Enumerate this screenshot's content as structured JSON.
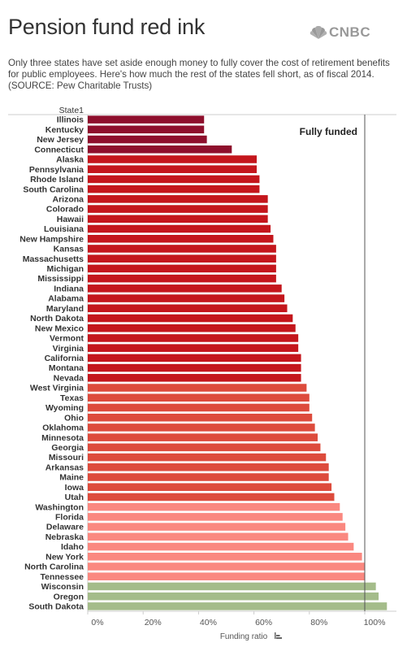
{
  "header": {
    "title": "Pension fund red ink",
    "logo_text": "CNBC",
    "logo_icon": "peacock-icon",
    "subtitle": "Only three states have set aside enough money to fully cover the cost of retirement benefits for public employees. Here's how much the rest of the states fell short, as of fiscal 2014. (SOURCE: Pew Charitable Trusts)"
  },
  "chart_data": {
    "type": "bar",
    "orientation": "horizontal",
    "category_header": "State1",
    "xlabel": "Funding ratio",
    "xlabel_icon": "sort-icon",
    "xlim": [
      0,
      1.1
    ],
    "x_ticks": [
      0,
      0.2,
      0.4,
      0.6,
      0.8,
      1.0
    ],
    "x_tick_labels": [
      "0%",
      "20%",
      "40%",
      "60%",
      "80%",
      "100%"
    ],
    "reference_line": {
      "value": 1.0,
      "label": "Fully funded"
    },
    "grid": false,
    "colors": {
      "deep": "#8e0f2c",
      "red": "#c4161c",
      "mid": "#dd4b3c",
      "light": "#fa8880",
      "green": "#a4bc8a"
    },
    "bars": [
      {
        "category": "Illinois",
        "value": 0.42,
        "color_group": "deep"
      },
      {
        "category": "Kentucky",
        "value": 0.42,
        "color_group": "deep"
      },
      {
        "category": "New Jersey",
        "value": 0.43,
        "color_group": "deep"
      },
      {
        "category": "Connecticut",
        "value": 0.52,
        "color_group": "deep"
      },
      {
        "category": "Alaska",
        "value": 0.61,
        "color_group": "red"
      },
      {
        "category": "Pennsylvania",
        "value": 0.61,
        "color_group": "red"
      },
      {
        "category": "Rhode Island",
        "value": 0.62,
        "color_group": "red"
      },
      {
        "category": "South Carolina",
        "value": 0.62,
        "color_group": "red"
      },
      {
        "category": "Arizona",
        "value": 0.65,
        "color_group": "red"
      },
      {
        "category": "Colorado",
        "value": 0.65,
        "color_group": "red"
      },
      {
        "category": "Hawaii",
        "value": 0.65,
        "color_group": "red"
      },
      {
        "category": "Louisiana",
        "value": 0.66,
        "color_group": "red"
      },
      {
        "category": "New Hampshire",
        "value": 0.67,
        "color_group": "red"
      },
      {
        "category": "Kansas",
        "value": 0.68,
        "color_group": "red"
      },
      {
        "category": "Massachusetts",
        "value": 0.68,
        "color_group": "red"
      },
      {
        "category": "Michigan",
        "value": 0.68,
        "color_group": "red"
      },
      {
        "category": "Mississippi",
        "value": 0.68,
        "color_group": "red"
      },
      {
        "category": "Indiana",
        "value": 0.7,
        "color_group": "red"
      },
      {
        "category": "Alabama",
        "value": 0.71,
        "color_group": "red"
      },
      {
        "category": "Maryland",
        "value": 0.72,
        "color_group": "red"
      },
      {
        "category": "North Dakota",
        "value": 0.74,
        "color_group": "red"
      },
      {
        "category": "New Mexico",
        "value": 0.75,
        "color_group": "red"
      },
      {
        "category": "Vermont",
        "value": 0.76,
        "color_group": "red"
      },
      {
        "category": "Virginia",
        "value": 0.76,
        "color_group": "red"
      },
      {
        "category": "California",
        "value": 0.77,
        "color_group": "red"
      },
      {
        "category": "Montana",
        "value": 0.77,
        "color_group": "red"
      },
      {
        "category": "Nevada",
        "value": 0.77,
        "color_group": "red"
      },
      {
        "category": "West Virginia",
        "value": 0.79,
        "color_group": "mid"
      },
      {
        "category": "Texas",
        "value": 0.8,
        "color_group": "mid"
      },
      {
        "category": "Wyoming",
        "value": 0.8,
        "color_group": "mid"
      },
      {
        "category": "Ohio",
        "value": 0.81,
        "color_group": "mid"
      },
      {
        "category": "Oklahoma",
        "value": 0.82,
        "color_group": "mid"
      },
      {
        "category": "Minnesota",
        "value": 0.83,
        "color_group": "mid"
      },
      {
        "category": "Georgia",
        "value": 0.84,
        "color_group": "mid"
      },
      {
        "category": "Missouri",
        "value": 0.86,
        "color_group": "mid"
      },
      {
        "category": "Arkansas",
        "value": 0.87,
        "color_group": "mid"
      },
      {
        "category": "Maine",
        "value": 0.87,
        "color_group": "mid"
      },
      {
        "category": "Iowa",
        "value": 0.88,
        "color_group": "mid"
      },
      {
        "category": "Utah",
        "value": 0.89,
        "color_group": "mid"
      },
      {
        "category": "Washington",
        "value": 0.91,
        "color_group": "light"
      },
      {
        "category": "Florida",
        "value": 0.92,
        "color_group": "light"
      },
      {
        "category": "Delaware",
        "value": 0.93,
        "color_group": "light"
      },
      {
        "category": "Nebraska",
        "value": 0.94,
        "color_group": "light"
      },
      {
        "category": "Idaho",
        "value": 0.96,
        "color_group": "light"
      },
      {
        "category": "New York",
        "value": 0.99,
        "color_group": "light"
      },
      {
        "category": "North Carolina",
        "value": 1.0,
        "color_group": "light"
      },
      {
        "category": "Tennessee",
        "value": 1.0,
        "color_group": "light"
      },
      {
        "category": "Wisconsin",
        "value": 1.04,
        "color_group": "green"
      },
      {
        "category": "Oregon",
        "value": 1.05,
        "color_group": "green"
      },
      {
        "category": "South Dakota",
        "value": 1.08,
        "color_group": "green"
      }
    ]
  }
}
